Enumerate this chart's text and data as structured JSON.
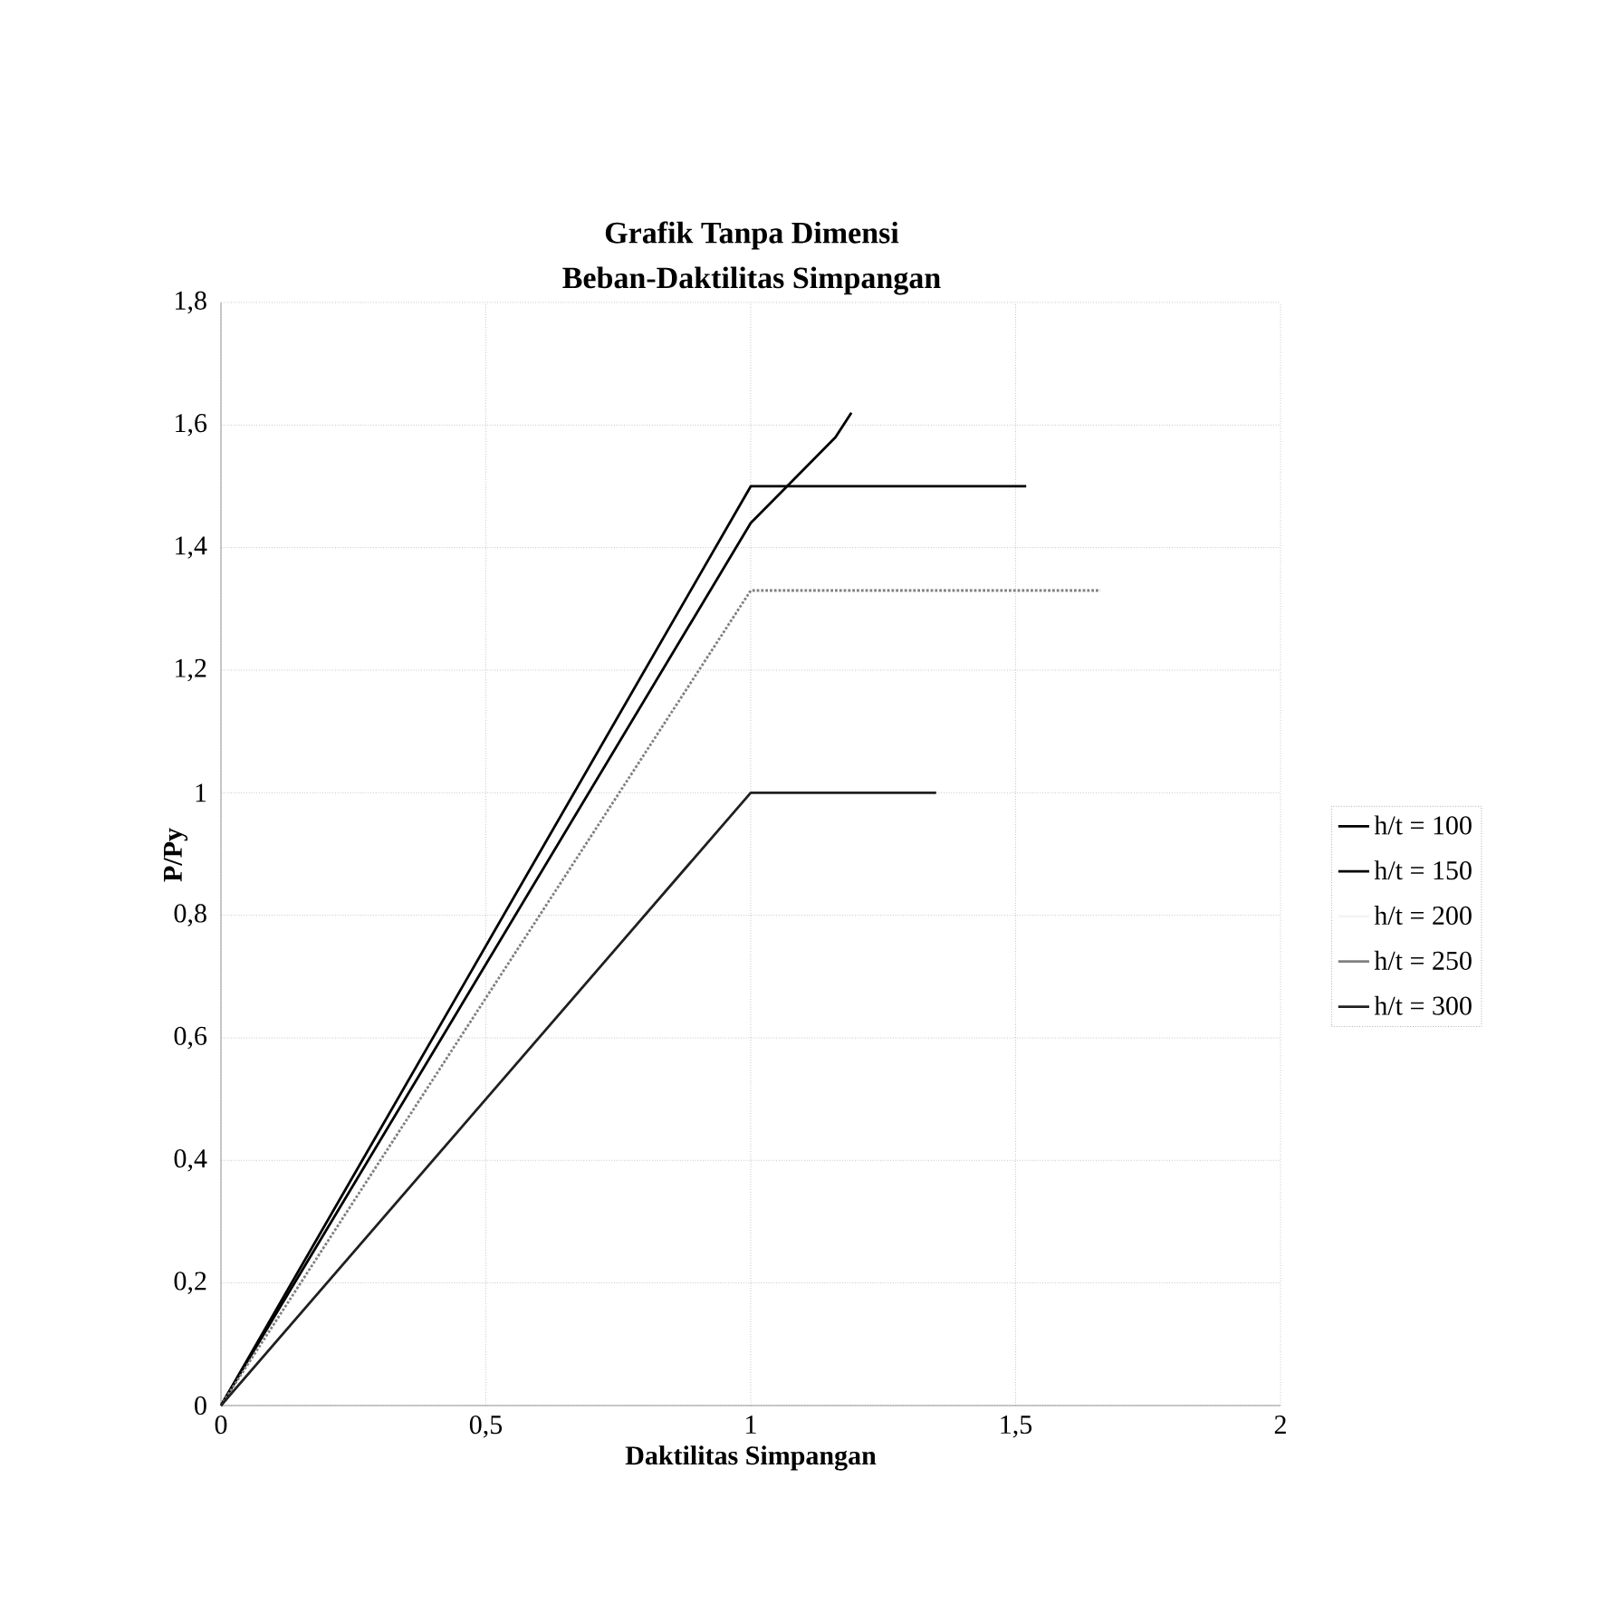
{
  "chart_data": {
    "type": "line",
    "title": "Grafik Tanpa Dimensi",
    "subtitle": "Beban-Daktilitas Simpangan",
    "xlabel": "Daktilitas Simpangan",
    "ylabel": "P/Py",
    "series": [
      {
        "name": "h/t = 100",
        "color": "#000000",
        "line_style": "solid",
        "x": [
          0,
          1.0,
          1.52
        ],
        "values": [
          0,
          1.5,
          1.5
        ]
      },
      {
        "name": "h/t = 150",
        "color": "#000000",
        "line_style": "solid",
        "x": [
          0,
          1.0,
          1.16,
          1.19
        ],
        "values": [
          0,
          1.44,
          1.58,
          1.62
        ]
      },
      {
        "name": "h/t = 200",
        "color": "#f4f4f4",
        "line_style": "solid"
      },
      {
        "name": "h/t = 250",
        "color": "#808080",
        "line_style": "dotted",
        "x": [
          0,
          1.0,
          1.66
        ],
        "values": [
          0,
          1.33,
          1.33
        ]
      },
      {
        "name": "h/t = 300",
        "color": "#202020",
        "line_style": "solid",
        "x": [
          0,
          1.0,
          1.35
        ],
        "values": [
          0,
          1.0,
          1.0
        ]
      }
    ],
    "xlim": [
      0,
      2
    ],
    "ylim": [
      0,
      1.8
    ],
    "xticks": [
      0,
      {
        "value": 0.5,
        "label": "0,5"
      },
      1,
      {
        "value": 1.5,
        "label": "1,5"
      },
      2
    ],
    "yticks": [
      0,
      {
        "value": 0.2,
        "label": "0,2"
      },
      {
        "value": 0.4,
        "label": "0,4"
      },
      {
        "value": 0.6,
        "label": "0,6"
      },
      {
        "value": 0.8,
        "label": "0,8"
      },
      1,
      {
        "value": 1.2,
        "label": "1,2"
      },
      {
        "value": 1.4,
        "label": "1,4"
      },
      {
        "value": 1.6,
        "label": "1,6"
      },
      {
        "value": 1.8,
        "label": "1,8"
      }
    ],
    "grid": true,
    "legend": "right",
    "marker": "none"
  }
}
